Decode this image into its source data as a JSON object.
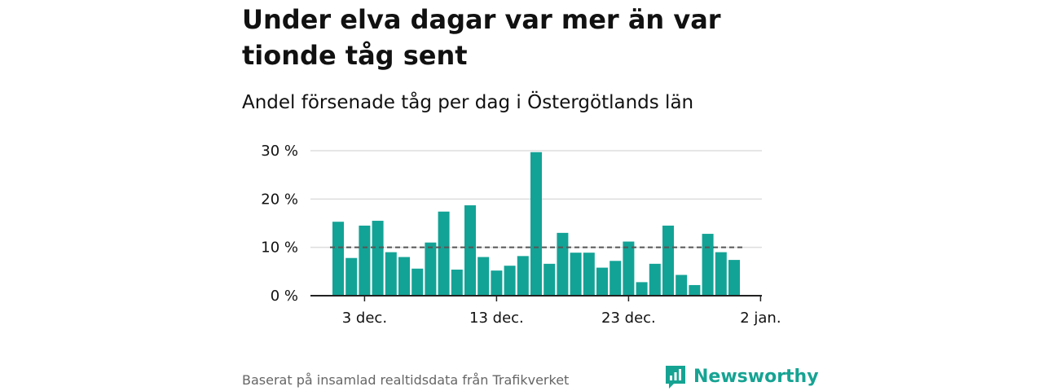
{
  "title": "Under elva dagar var mer än var tionde tåg sent",
  "subtitle": "Andel försenade tåg per dag i Östergötlands län",
  "source": "Baserat på insamlad realtidsdata från Trafikverket",
  "brand": {
    "name": "Newsworthy",
    "icon": "newsworthy-logo-icon"
  },
  "colors": {
    "bar": "#13a396",
    "reference_line": "#555555",
    "grid": "#dddddd",
    "brand": "#16a393"
  },
  "chart_data": {
    "type": "bar",
    "unit": "%",
    "y_ticks": [
      {
        "value": 0,
        "label": "0 %"
      },
      {
        "value": 10,
        "label": "10 %"
      },
      {
        "value": 20,
        "label": "20 %"
      },
      {
        "value": 30,
        "label": "30 %"
      }
    ],
    "ylim": [
      0,
      30
    ],
    "x_ticks": [
      {
        "index": 2,
        "label": "3 dec."
      },
      {
        "index": 12,
        "label": "13 dec."
      },
      {
        "index": 22,
        "label": "23 dec."
      },
      {
        "index": 32,
        "label": "2 jan."
      }
    ],
    "categories": [
      "1 dec.",
      "2 dec.",
      "3 dec.",
      "4 dec.",
      "5 dec.",
      "6 dec.",
      "7 dec.",
      "8 dec.",
      "9 dec.",
      "10 dec.",
      "11 dec.",
      "12 dec.",
      "13 dec.",
      "14 dec.",
      "15 dec.",
      "16 dec.",
      "17 dec.",
      "18 dec.",
      "19 dec.",
      "20 dec.",
      "21 dec.",
      "22 dec.",
      "23 dec.",
      "24 dec.",
      "25 dec.",
      "26 dec.",
      "27 dec.",
      "28 dec.",
      "29 dec.",
      "30 dec.",
      "31 dec."
    ],
    "values": [
      15.3,
      7.8,
      14.5,
      15.5,
      9.0,
      8.0,
      5.6,
      11.0,
      17.4,
      5.4,
      18.7,
      8.0,
      5.2,
      6.2,
      8.2,
      29.7,
      6.6,
      13.0,
      8.9,
      8.9,
      5.8,
      7.2,
      11.2,
      2.8,
      6.6,
      14.5,
      4.3,
      2.2,
      12.8,
      9.0,
      7.4
    ],
    "reference_line": 10,
    "grid": true
  }
}
